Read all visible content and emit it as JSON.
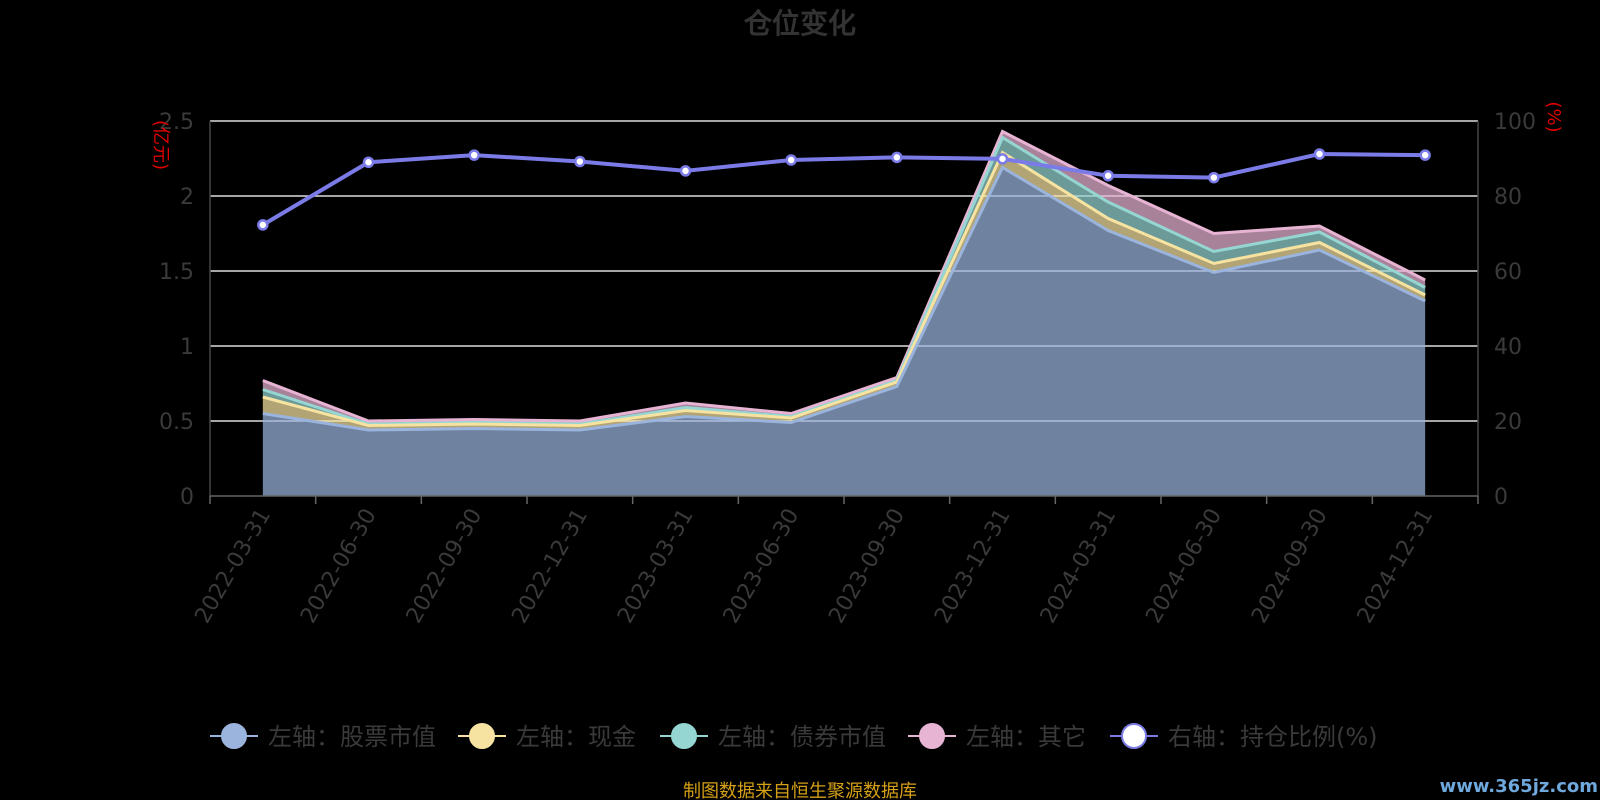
{
  "chart_data": {
    "type": "area",
    "title": "仓位变化",
    "left_axis": {
      "unit": "(亿元)",
      "range": [
        0,
        2.5
      ],
      "ticks": [
        "0",
        "0.5",
        "1",
        "1.5",
        "2",
        "2.5"
      ]
    },
    "right_axis": {
      "unit": "(%)",
      "range": [
        0,
        100
      ],
      "ticks": [
        "0",
        "20",
        "40",
        "60",
        "80",
        "100"
      ]
    },
    "categories": [
      "2022-03-31",
      "2022-06-30",
      "2022-09-30",
      "2022-12-31",
      "2023-03-31",
      "2023-06-30",
      "2023-09-30",
      "2023-12-31",
      "2024-03-31",
      "2024-06-30",
      "2024-09-30",
      "2024-12-31"
    ],
    "series": [
      {
        "name": "左轴：股票市值",
        "axis": "left",
        "kind": "stacked-area",
        "color": "#9ab4dd",
        "values": [
          0.55,
          0.44,
          0.45,
          0.44,
          0.53,
          0.49,
          0.73,
          2.19,
          1.77,
          1.49,
          1.64,
          1.3
        ]
      },
      {
        "name": "左轴：现金",
        "axis": "left",
        "kind": "stacked-area",
        "color": "#f6e3a1",
        "values": [
          0.11,
          0.03,
          0.03,
          0.03,
          0.04,
          0.03,
          0.03,
          0.1,
          0.08,
          0.06,
          0.05,
          0.04
        ]
      },
      {
        "name": "左轴：债券市值",
        "axis": "left",
        "kind": "stacked-area",
        "color": "#95d6d2",
        "values": [
          0.05,
          0.01,
          0.01,
          0.01,
          0.02,
          0.01,
          0.01,
          0.1,
          0.11,
          0.08,
          0.07,
          0.05
        ]
      },
      {
        "name": "左轴：其它",
        "axis": "left",
        "kind": "stacked-area",
        "color": "#e8b4d4",
        "values": [
          0.06,
          0.02,
          0.02,
          0.02,
          0.03,
          0.02,
          0.02,
          0.04,
          0.11,
          0.12,
          0.04,
          0.05
        ]
      },
      {
        "name": "右轴：持仓比例(%)",
        "axis": "right",
        "kind": "line",
        "color": "#7b7be8",
        "values": [
          72.3,
          89.0,
          90.9,
          89.2,
          86.7,
          89.6,
          90.3,
          89.9,
          85.4,
          84.9,
          91.2,
          90.9
        ]
      }
    ],
    "grid": true,
    "legend": "bottom",
    "source_note": "制图数据来自恒生聚源数据库",
    "watermark": "www.365jz.com"
  }
}
